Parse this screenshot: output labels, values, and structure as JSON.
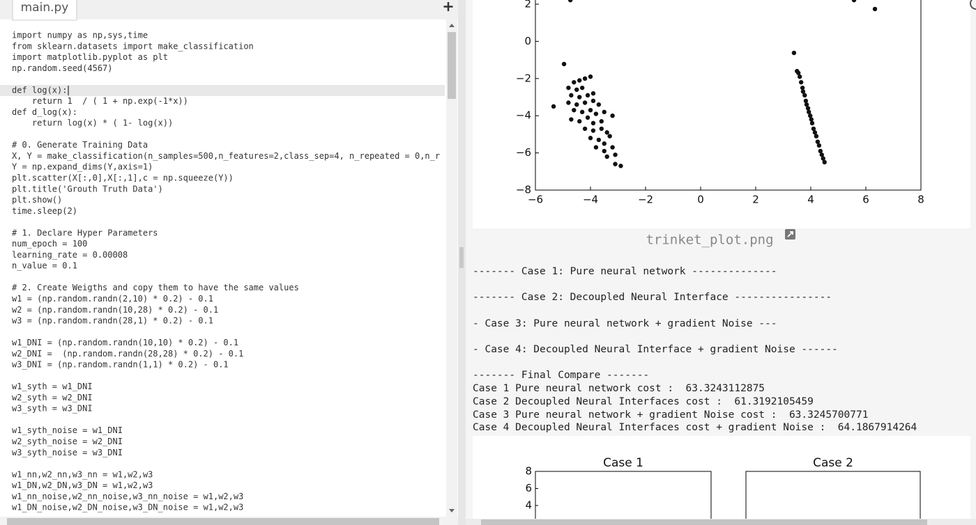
{
  "editor": {
    "tab": "main.py",
    "blocks": [
      [
        "import numpy as np,sys,time",
        "from sklearn.datasets import make_classification",
        "import matplotlib.pyplot as plt",
        "np.random.seed(4567)"
      ],
      [
        "def log(x):",
        "    return 1  / ( 1 + np.exp(-1*x))",
        "def d_log(x):",
        "    return log(x) * ( 1- log(x))"
      ],
      [
        "# 0. Generate Training Data",
        "X, Y = make_classification(n_samples=500,n_features=2,class_sep=4, n_repeated = 0,n_r",
        "Y = np.expand_dims(Y,axis=1)",
        "plt.scatter(X[:,0],X[:,1],c = np.squeeze(Y))",
        "plt.title('Grouth Truth Data')",
        "plt.show()",
        "time.sleep(2)"
      ],
      [
        "# 1. Declare Hyper Parameters",
        "num_epoch = 100",
        "learning_rate = 0.00008",
        "n_value = 0.1"
      ],
      [
        "# 2. Create Weigths and copy them to have the same values",
        "w1 = (np.random.randn(2,10) * 0.2) - 0.1",
        "w2 = (np.random.randn(10,28) * 0.2) - 0.1",
        "w3 = (np.random.randn(28,1) * 0.2) - 0.1"
      ],
      [
        "w1_DNI = (np.random.randn(10,10) * 0.2) - 0.1",
        "w2_DNI =  (np.random.randn(28,28) * 0.2) - 0.1",
        "w3_DNI = (np.random.randn(1,1) * 0.2) - 0.1"
      ],
      [
        "w1_syth = w1_DNI",
        "w2_syth = w2_DNI",
        "w3_syth = w3_DNI"
      ],
      [
        "w1_syth_noise = w1_DNI",
        "w2_syth_noise = w2_DNI",
        "w3_syth_noise = w3_DNI"
      ],
      [
        "w1_nn,w2_nn,w3_nn = w1,w2,w3",
        "w1_DN,w2_DN,w3_DN = w1,w2,w3",
        "w1_nn_noise,w2_nn_noise,w3_nn_noise = w1,w2,w3",
        "w1_DN_noise,w2_DN_noise,w3_DN_noise = w1,w2,w3"
      ]
    ]
  },
  "plot": {
    "xticks": [
      {
        "value": -6,
        "label": "−6"
      },
      {
        "value": -4,
        "label": "−4"
      },
      {
        "value": -2,
        "label": "−2"
      },
      0,
      2,
      4,
      6,
      8
    ],
    "yticks": [
      2,
      0,
      {
        "value": -2,
        "label": "−2"
      },
      {
        "value": -4,
        "label": "−4"
      },
      {
        "value": -6,
        "label": "−6"
      },
      {
        "value": -8,
        "label": "−8"
      }
    ],
    "color": "#111111",
    "points": {
      "x": [
        -4.73,
        -4.96,
        -5.34,
        3.39,
        6.33,
        5.57,
        -4.6,
        -4.4,
        -4.2,
        -4.0,
        -4.8,
        -4.5,
        -4.3,
        -4.7,
        -4.4,
        -4.1,
        -3.9,
        -4.8,
        -4.5,
        -4.2,
        -3.9,
        -3.7,
        -4.6,
        -4.3,
        -4.0,
        -3.8,
        -3.5,
        -4.7,
        -4.4,
        -4.1,
        -3.9,
        -3.6,
        -3.2,
        -4.2,
        -3.9,
        -3.6,
        -3.4,
        -4.0,
        -3.7,
        -3.5,
        -3.3,
        -3.8,
        -3.5,
        -3.2,
        -3.4,
        -3.1,
        -3.1,
        -2.9,
        3.5,
        3.55,
        3.6,
        3.65,
        3.7,
        3.72,
        3.78,
        3.82,
        3.85,
        3.9,
        3.93,
        3.98,
        4.02,
        4.05,
        4.1,
        4.15,
        4.2,
        4.25,
        4.3,
        4.35,
        4.4,
        4.45,
        4.5
      ],
      "y": [
        2.22,
        -1.22,
        -3.5,
        -0.62,
        1.74,
        2.22,
        -2.2,
        -2.1,
        -2.0,
        -1.9,
        -2.5,
        -2.6,
        -2.5,
        -2.9,
        -3.0,
        -2.9,
        -2.8,
        -3.3,
        -3.4,
        -3.3,
        -3.2,
        -3.4,
        -3.7,
        -3.8,
        -3.7,
        -3.9,
        -3.8,
        -4.2,
        -4.3,
        -4.1,
        -4.4,
        -4.3,
        -4.0,
        -4.7,
        -4.8,
        -4.7,
        -4.9,
        -5.2,
        -5.3,
        -5.5,
        -5.1,
        -5.7,
        -5.9,
        -5.7,
        -6.2,
        -6.1,
        -6.6,
        -6.7,
        -1.6,
        -1.7,
        -1.9,
        -2.2,
        -2.5,
        -2.7,
        -2.9,
        -3.2,
        -3.4,
        -3.6,
        -3.8,
        -4.0,
        -4.2,
        -4.4,
        -4.7,
        -4.9,
        -5.1,
        -5.4,
        -5.6,
        -5.9,
        -6.1,
        -6.3,
        -6.5
      ]
    }
  },
  "plot_caption": "trinket_plot.png",
  "output": [
    "------- Case 1: Pure neural network --------------",
    "------- Case 2: Decoupled Neural Interface ----------------",
    "- Case 3: Pure neural network + gradient Noise ---",
    "- Case 4: Decoupled Neural Interface + gradient Noise ------",
    "------- Final Compare -------",
    "Case 1 Pure neural network cost :  63.3243112875",
    "Case 2 Decoupled Neural Interfaces cost :  61.3192105459",
    "Case 3 Pure neural network + gradient Noise cost :  63.3245700771",
    "Case 4 Decoupled Neural Interfaces cost + gradient Noise :  64.1867914264"
  ],
  "subplots": [
    {
      "title": "Case 1",
      "yticks": [
        8,
        6,
        4
      ]
    },
    {
      "title": "Case 2"
    }
  ]
}
